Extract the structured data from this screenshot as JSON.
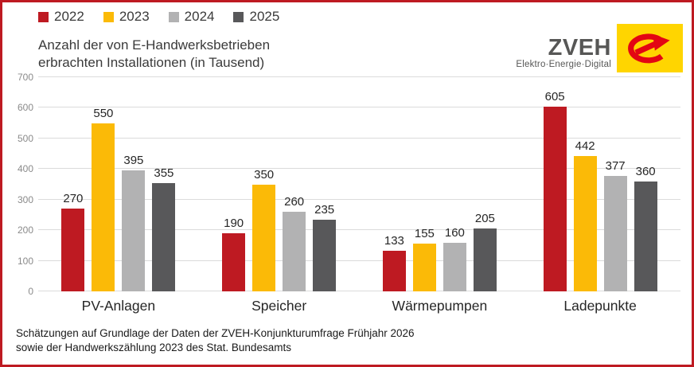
{
  "frame": {
    "border_color": "#be1a22"
  },
  "legend": {
    "items": [
      {
        "label": "2022",
        "color": "#be1a22"
      },
      {
        "label": "2023",
        "color": "#fbba07"
      },
      {
        "label": "2024",
        "color": "#b2b2b3"
      },
      {
        "label": "2025",
        "color": "#58585a"
      }
    ]
  },
  "title": {
    "line1": "Anzahl der von E-Handwerksbetrieben",
    "line2": "erbrachten Installationen (in Tausend)"
  },
  "logo": {
    "name": "ZVEH",
    "tagline": "Elektro·Energie·Digital",
    "box_color": "#ffd500",
    "mark_color": "#e30613",
    "text_color": "#575756"
  },
  "chart_data": {
    "type": "bar",
    "title": "Anzahl der von E-Handwerksbetrieben erbrachten Installationen (in Tausend)",
    "categories": [
      "PV-Anlagen",
      "Speicher",
      "Wärmepumpen",
      "Ladepunkte"
    ],
    "series": [
      {
        "name": "2022",
        "color": "#be1a22",
        "values": [
          270,
          190,
          133,
          605
        ]
      },
      {
        "name": "2023",
        "color": "#fbba07",
        "values": [
          550,
          350,
          155,
          442
        ]
      },
      {
        "name": "2024",
        "color": "#b2b2b3",
        "values": [
          395,
          260,
          160,
          377
        ]
      },
      {
        "name": "2025",
        "color": "#58585a",
        "values": [
          355,
          235,
          205,
          360
        ]
      }
    ],
    "xlabel": "",
    "ylabel": "",
    "ylim": [
      0,
      700
    ],
    "ytick_step": 100,
    "grid": true,
    "legend_position": "top-left",
    "data_labels": true
  },
  "footer": {
    "line1": "Schätzungen auf Grundlage der Daten der ZVEH-Konjunkturumfrage Frühjahr 2026",
    "line2": "sowie der Handwerkszählung 2023 des Stat. Bundesamts"
  }
}
